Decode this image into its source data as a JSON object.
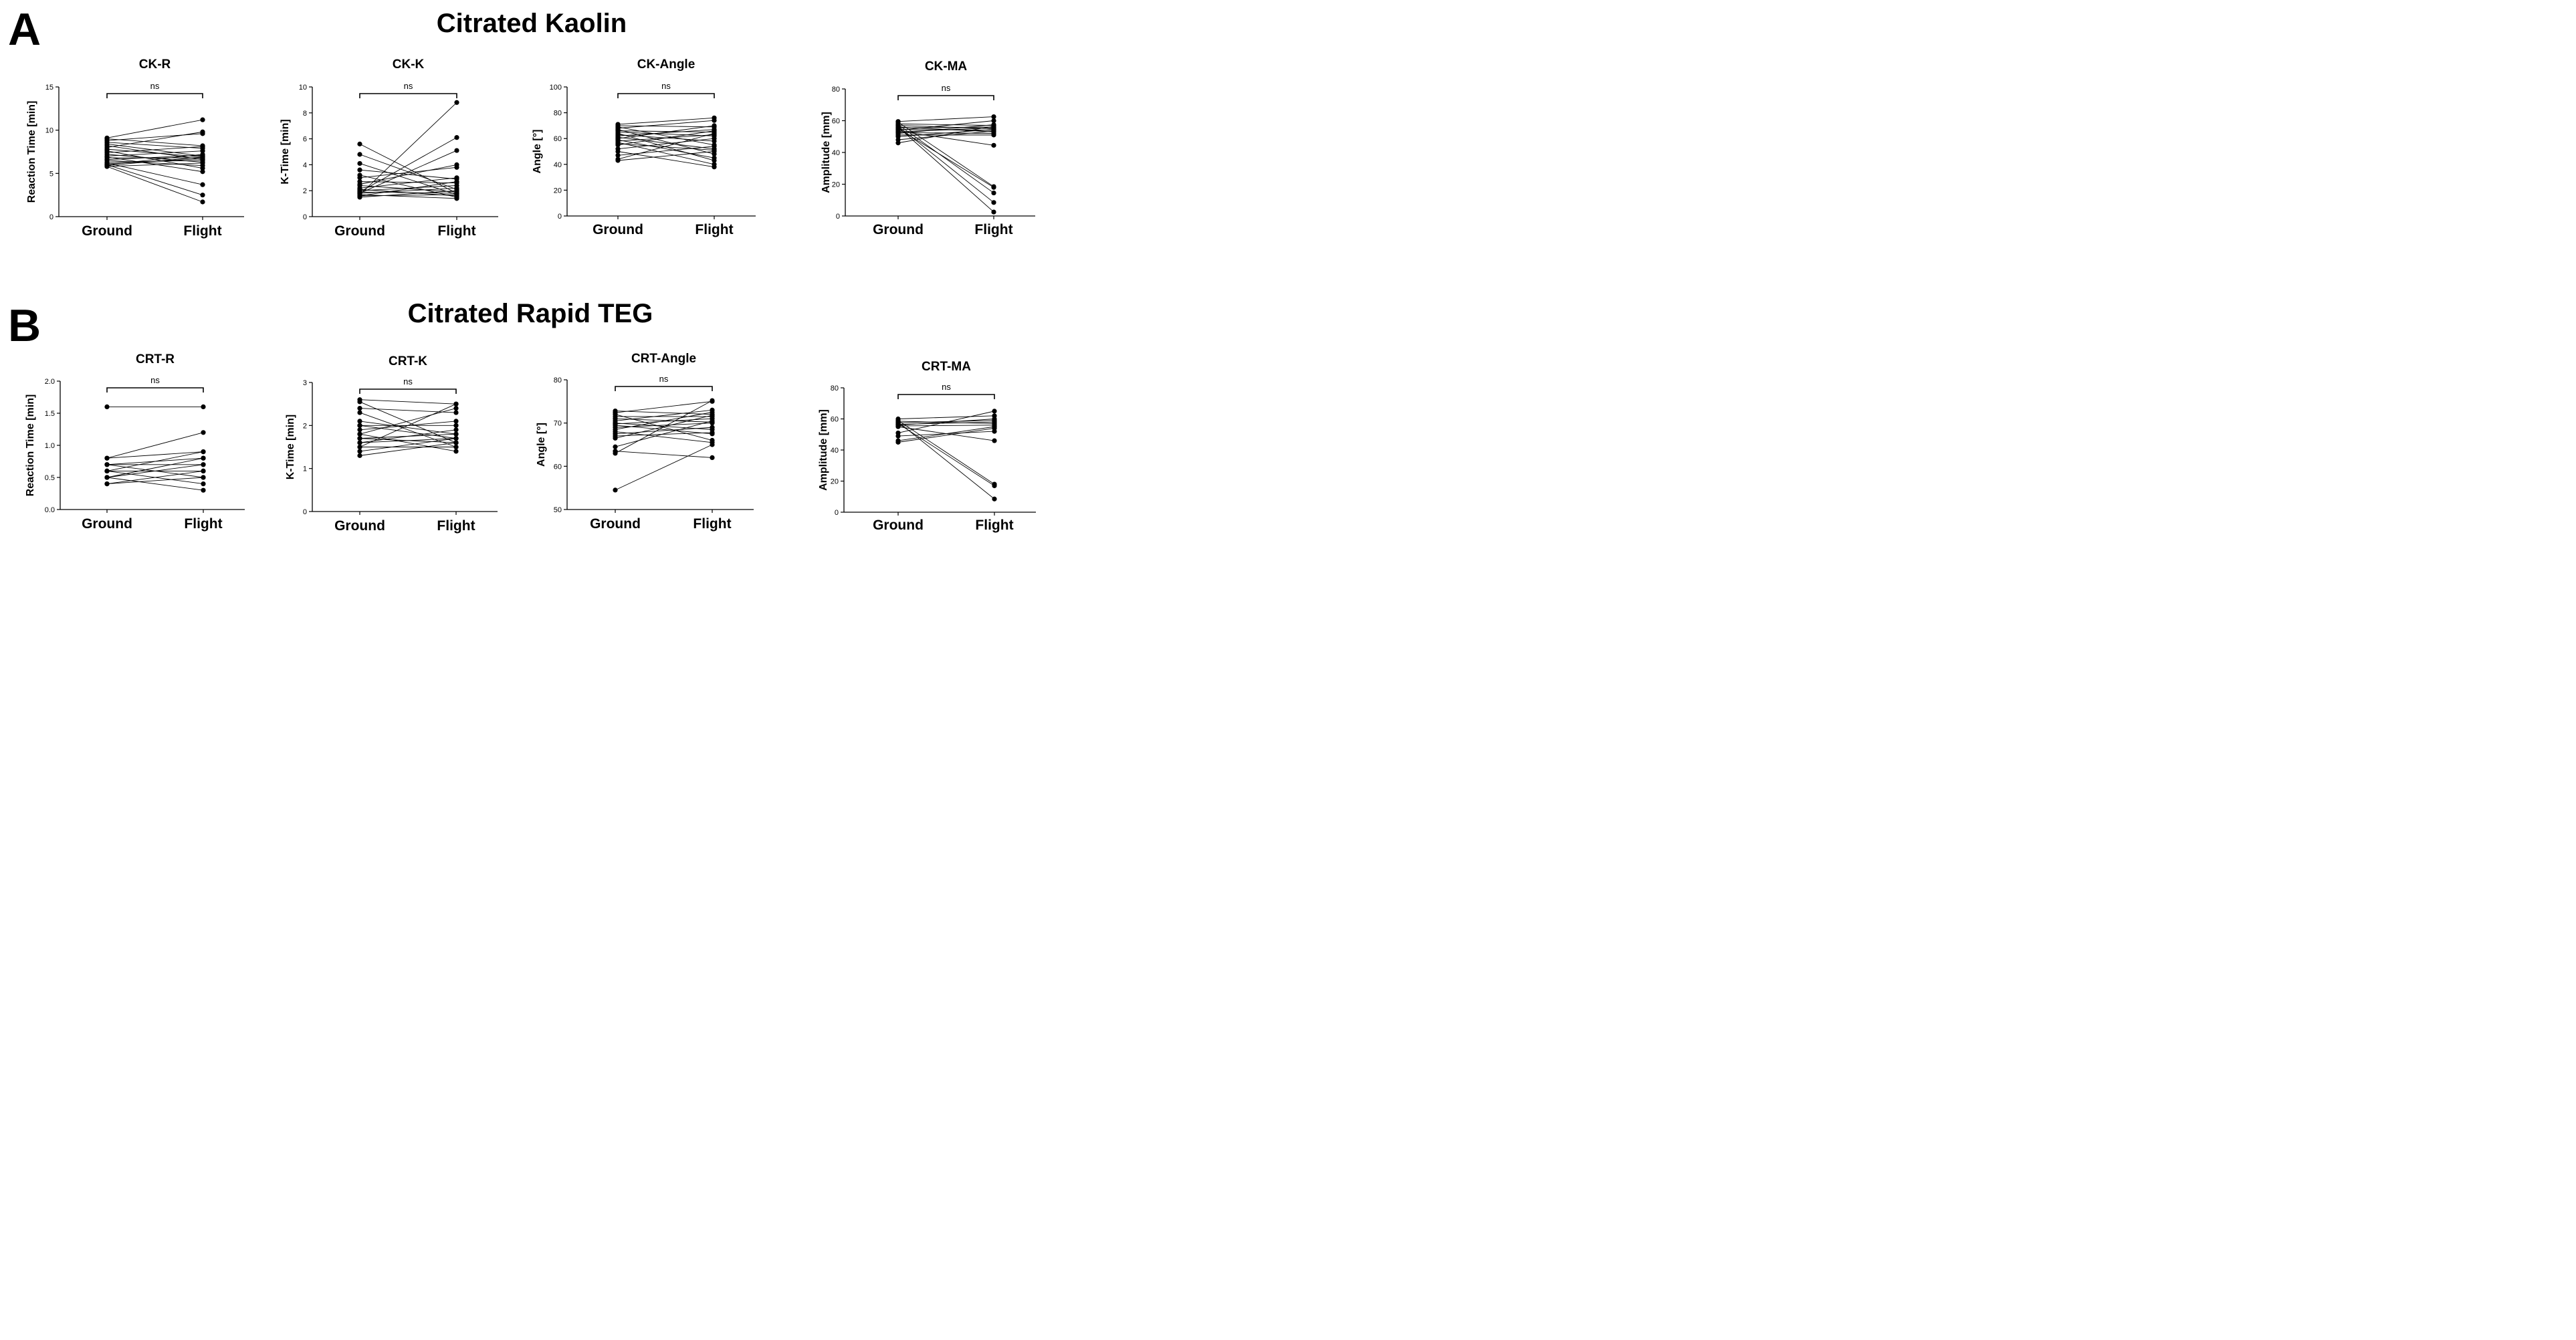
{
  "figure": {
    "panel_a": {
      "letter": "A",
      "title": "Citrated Kaolin"
    },
    "panel_b": {
      "letter": "B",
      "title": "Citrated Rapid TEG"
    }
  },
  "chart_data": [
    {
      "type": "line",
      "title": "CK-R",
      "ylabel": "Reaction Time [min]",
      "categories": [
        "Ground",
        "Flight"
      ],
      "ylim": [
        0,
        15
      ],
      "yticks": [
        "0",
        "5",
        "10",
        "15"
      ],
      "annotation": "ns",
      "pairs": [
        [
          9.1,
          11.2
        ],
        [
          9.0,
          8.2
        ],
        [
          8.8,
          9.6
        ],
        [
          8.6,
          7.9
        ],
        [
          8.4,
          7.0
        ],
        [
          8.2,
          6.6
        ],
        [
          8.0,
          9.8
        ],
        [
          7.8,
          6.9
        ],
        [
          7.6,
          5.6
        ],
        [
          7.4,
          8.1
        ],
        [
          7.2,
          6.3
        ],
        [
          7.0,
          7.6
        ],
        [
          6.9,
          5.2
        ],
        [
          6.8,
          6.8
        ],
        [
          6.6,
          7.1
        ],
        [
          6.5,
          5.9
        ],
        [
          6.3,
          6.5
        ],
        [
          6.2,
          3.7
        ],
        [
          6.1,
          6.7
        ],
        [
          6.0,
          2.5
        ],
        [
          6.0,
          7.2
        ],
        [
          5.9,
          6.9
        ],
        [
          5.8,
          1.7
        ],
        [
          5.8,
          6.2
        ]
      ]
    },
    {
      "type": "line",
      "title": "CK-K",
      "ylabel": "K-Time [min]",
      "categories": [
        "Ground",
        "Flight"
      ],
      "ylim": [
        0,
        10
      ],
      "yticks": [
        "0",
        "2",
        "4",
        "6",
        "8",
        "10"
      ],
      "annotation": "ns",
      "pairs": [
        [
          5.6,
          1.8
        ],
        [
          4.8,
          2.1
        ],
        [
          4.1,
          1.7
        ],
        [
          3.6,
          2.9
        ],
        [
          3.2,
          1.5
        ],
        [
          3.0,
          3.8
        ],
        [
          2.7,
          2.6
        ],
        [
          2.5,
          4.0
        ],
        [
          2.4,
          1.9
        ],
        [
          2.2,
          3.0
        ],
        [
          2.1,
          1.6
        ],
        [
          2.0,
          2.4
        ],
        [
          1.9,
          6.1
        ],
        [
          1.9,
          1.8
        ],
        [
          1.8,
          5.1
        ],
        [
          1.8,
          2.2
        ],
        [
          1.7,
          8.8
        ],
        [
          1.7,
          1.4
        ],
        [
          1.6,
          2.7
        ],
        [
          1.6,
          1.7
        ],
        [
          1.5,
          2.0
        ]
      ]
    },
    {
      "type": "line",
      "title": "CK-Angle",
      "ylabel": "Angle [°]",
      "categories": [
        "Ground",
        "Flight"
      ],
      "ylim": [
        0,
        100
      ],
      "yticks": [
        "0",
        "20",
        "40",
        "60",
        "80",
        "100"
      ],
      "annotation": "ns",
      "pairs": [
        [
          71,
          76
        ],
        [
          70,
          69
        ],
        [
          69,
          55
        ],
        [
          68,
          74
        ],
        [
          67,
          48
        ],
        [
          66,
          65
        ],
        [
          65,
          62
        ],
        [
          64,
          43
        ],
        [
          63,
          58
        ],
        [
          62,
          67
        ],
        [
          61,
          52
        ],
        [
          60,
          70
        ],
        [
          59,
          45
        ],
        [
          58,
          63
        ],
        [
          57,
          40
        ],
        [
          56,
          51
        ],
        [
          55,
          66
        ],
        [
          52,
          60
        ],
        [
          50,
          38
        ],
        [
          47,
          54
        ],
        [
          44,
          64
        ],
        [
          43,
          50
        ]
      ]
    },
    {
      "type": "line",
      "title": "CK-MA",
      "ylabel": "Amplitude [mm]",
      "categories": [
        "Ground",
        "Flight"
      ],
      "ylim": [
        0,
        80
      ],
      "yticks": [
        "0",
        "20",
        "40",
        "60",
        "80"
      ],
      "annotation": "ns",
      "pairs": [
        [
          59.5,
          62.5
        ],
        [
          59,
          18.5
        ],
        [
          58,
          57
        ],
        [
          57.5,
          14.5
        ],
        [
          57,
          55
        ],
        [
          56.5,
          8.5
        ],
        [
          56,
          53
        ],
        [
          56,
          2.5
        ],
        [
          55.5,
          56
        ],
        [
          55,
          18
        ],
        [
          54.5,
          54
        ],
        [
          54,
          60
        ],
        [
          53.5,
          44.5
        ],
        [
          53,
          55.5
        ],
        [
          52.5,
          52
        ],
        [
          52,
          57.5
        ],
        [
          51,
          51
        ],
        [
          50,
          54.5
        ],
        [
          48,
          53.5
        ],
        [
          46,
          56.5
        ]
      ]
    },
    {
      "type": "line",
      "title": "CRT-R",
      "ylabel": "Reaction Time [min]",
      "categories": [
        "Ground",
        "Flight"
      ],
      "ylim": [
        0,
        2.0
      ],
      "yticks": [
        "0.0",
        "0.5",
        "1.0",
        "1.5",
        "2.0"
      ],
      "annotation": "ns",
      "pairs": [
        [
          1.6,
          1.6
        ],
        [
          0.8,
          1.2
        ],
        [
          0.8,
          0.9
        ],
        [
          0.7,
          0.7
        ],
        [
          0.7,
          0.8
        ],
        [
          0.7,
          0.5
        ],
        [
          0.6,
          0.9
        ],
        [
          0.6,
          0.6
        ],
        [
          0.6,
          0.4
        ],
        [
          0.5,
          0.7
        ],
        [
          0.5,
          0.8
        ],
        [
          0.5,
          0.3
        ],
        [
          0.4,
          0.6
        ],
        [
          0.4,
          0.5
        ]
      ]
    },
    {
      "type": "line",
      "title": "CRT-K",
      "ylabel": "K-Time [min]",
      "categories": [
        "Ground",
        "Flight"
      ],
      "ylim": [
        0,
        3
      ],
      "yticks": [
        "0",
        "1",
        "2",
        "3"
      ],
      "annotation": "ns",
      "pairs": [
        [
          2.6,
          2.5
        ],
        [
          2.55,
          1.6
        ],
        [
          2.4,
          2.3
        ],
        [
          2.3,
          1.5
        ],
        [
          2.1,
          1.8
        ],
        [
          2.0,
          2.0
        ],
        [
          2.0,
          1.7
        ],
        [
          1.9,
          2.1
        ],
        [
          1.8,
          1.4
        ],
        [
          1.8,
          2.4
        ],
        [
          1.7,
          1.8
        ],
        [
          1.7,
          1.6
        ],
        [
          1.6,
          1.9
        ],
        [
          1.6,
          1.7
        ],
        [
          1.5,
          2.5
        ],
        [
          1.5,
          1.5
        ],
        [
          1.4,
          1.7
        ],
        [
          1.3,
          1.6
        ]
      ]
    },
    {
      "type": "line",
      "title": "CRT-Angle",
      "ylabel": "Angle [°]",
      "categories": [
        "Ground",
        "Flight"
      ],
      "ylim": [
        50,
        80
      ],
      "yticks": [
        "50",
        "60",
        "70",
        "80"
      ],
      "annotation": "ns",
      "pairs": [
        [
          72.8,
          72.0
        ],
        [
          72.4,
          75.0
        ],
        [
          72.0,
          66.0
        ],
        [
          71.5,
          71.5
        ],
        [
          71.0,
          70.2
        ],
        [
          70.5,
          73.0
        ],
        [
          70.0,
          68.5
        ],
        [
          69.8,
          71.0
        ],
        [
          69.5,
          67.5
        ],
        [
          69.0,
          70.0
        ],
        [
          68.5,
          72.5
        ],
        [
          68.0,
          65.5
        ],
        [
          67.5,
          69.0
        ],
        [
          67.0,
          67.8
        ],
        [
          66.5,
          71.8
        ],
        [
          64.5,
          70.5
        ],
        [
          63.5,
          62.0
        ],
        [
          63.0,
          75.2
        ],
        [
          54.5,
          65.0
        ]
      ]
    },
    {
      "type": "line",
      "title": "CRT-MA",
      "ylabel": "Amplitude [mm]",
      "categories": [
        "Ground",
        "Flight"
      ],
      "ylim": [
        0,
        80
      ],
      "yticks": [
        "0",
        "20",
        "40",
        "60",
        "80"
      ],
      "annotation": "ns",
      "pairs": [
        [
          60,
          62
        ],
        [
          59,
          18
        ],
        [
          58.5,
          57
        ],
        [
          58,
          8.5
        ],
        [
          57.5,
          59
        ],
        [
          57,
          17
        ],
        [
          56.5,
          58
        ],
        [
          56,
          60
        ],
        [
          55.5,
          56
        ],
        [
          55,
          46
        ],
        [
          51,
          65
        ],
        [
          49,
          52
        ],
        [
          46,
          55
        ],
        [
          45,
          54
        ]
      ]
    }
  ]
}
